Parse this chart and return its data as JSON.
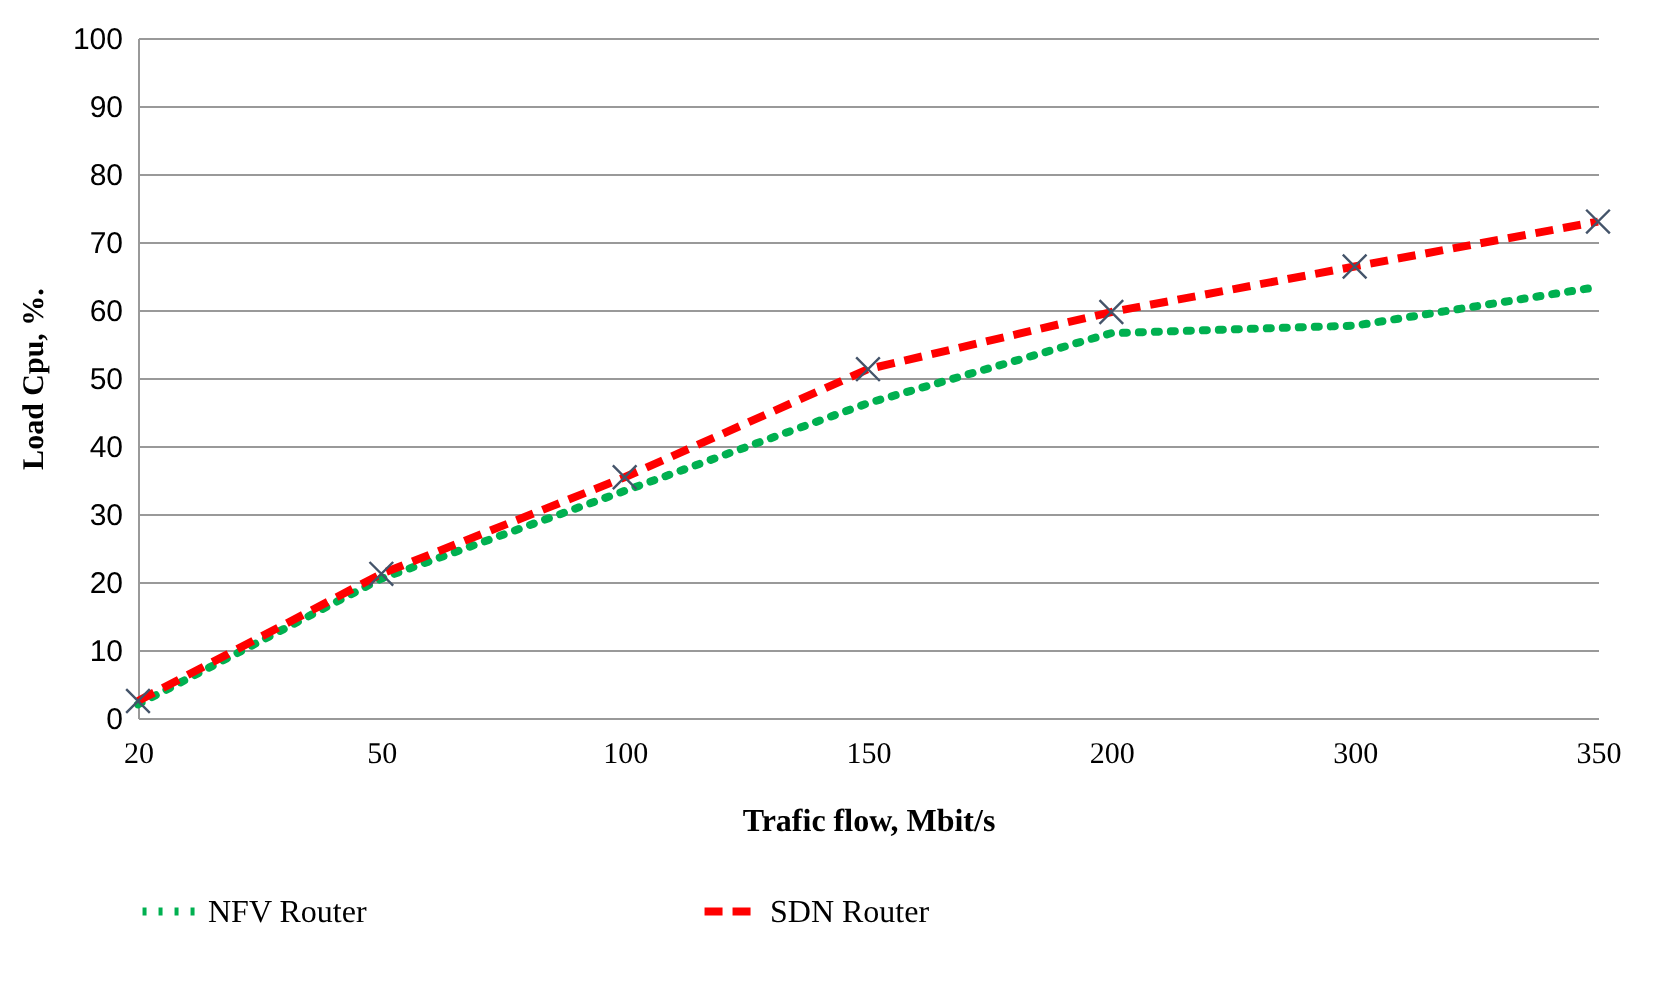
{
  "chart_data": {
    "type": "line",
    "xlabel": "Trafic flow, Mbit/s",
    "ylabel": "Load Cpu,  %.",
    "categories": [
      "20",
      "50",
      "100",
      "150",
      "200",
      "300",
      "350"
    ],
    "series": [
      {
        "name": "NFV Router",
        "color": "#00b050",
        "line_style": "dotted",
        "marker": "none",
        "values": [
          2,
          20.5,
          33.4,
          46.3,
          56.6,
          57.7,
          63.4
        ]
      },
      {
        "name": "SDN Router",
        "color": "#ff0000",
        "line_style": "dashed",
        "marker": "cross",
        "values": [
          2.5,
          21.2,
          35.4,
          51.3,
          59.7,
          66.4,
          73
        ]
      }
    ],
    "ylim": [
      0,
      100
    ],
    "yticks": [
      0,
      10,
      20,
      30,
      40,
      50,
      60,
      70,
      80,
      90,
      100
    ],
    "grid": "y",
    "legend": "bottom"
  }
}
